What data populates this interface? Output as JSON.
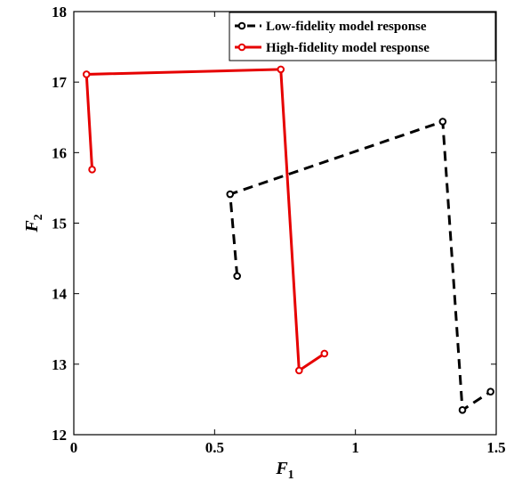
{
  "chart_data": {
    "type": "line",
    "xlabel": "F",
    "xlabel_sub": "1",
    "ylabel": "F",
    "ylabel_sub": "2",
    "xlim": [
      0,
      1.5
    ],
    "ylim": [
      12,
      18
    ],
    "xticks": [
      0,
      0.5,
      1,
      1.5
    ],
    "xtick_labels": [
      "0",
      "0.5",
      "1",
      "1.5"
    ],
    "yticks": [
      12,
      13,
      14,
      15,
      16,
      17,
      18
    ],
    "ytick_labels": [
      "12",
      "13",
      "14",
      "15",
      "16",
      "17",
      "18"
    ],
    "grid": false,
    "legend_position": "top-right",
    "series": [
      {
        "name": "Low-fidelity model response",
        "color": "#000000",
        "line_style": "dashed",
        "marker": "open-circle",
        "x": [
          0.58,
          0.555,
          1.31,
          1.38,
          1.48
        ],
        "y": [
          14.25,
          15.41,
          16.44,
          12.35,
          12.61
        ]
      },
      {
        "name": "High-fidelity model response",
        "color": "#e60000",
        "line_style": "solid",
        "marker": "open-circle",
        "x": [
          0.065,
          0.045,
          0.735,
          0.8,
          0.89
        ],
        "y": [
          15.76,
          17.11,
          17.18,
          12.91,
          13.15
        ]
      }
    ]
  }
}
